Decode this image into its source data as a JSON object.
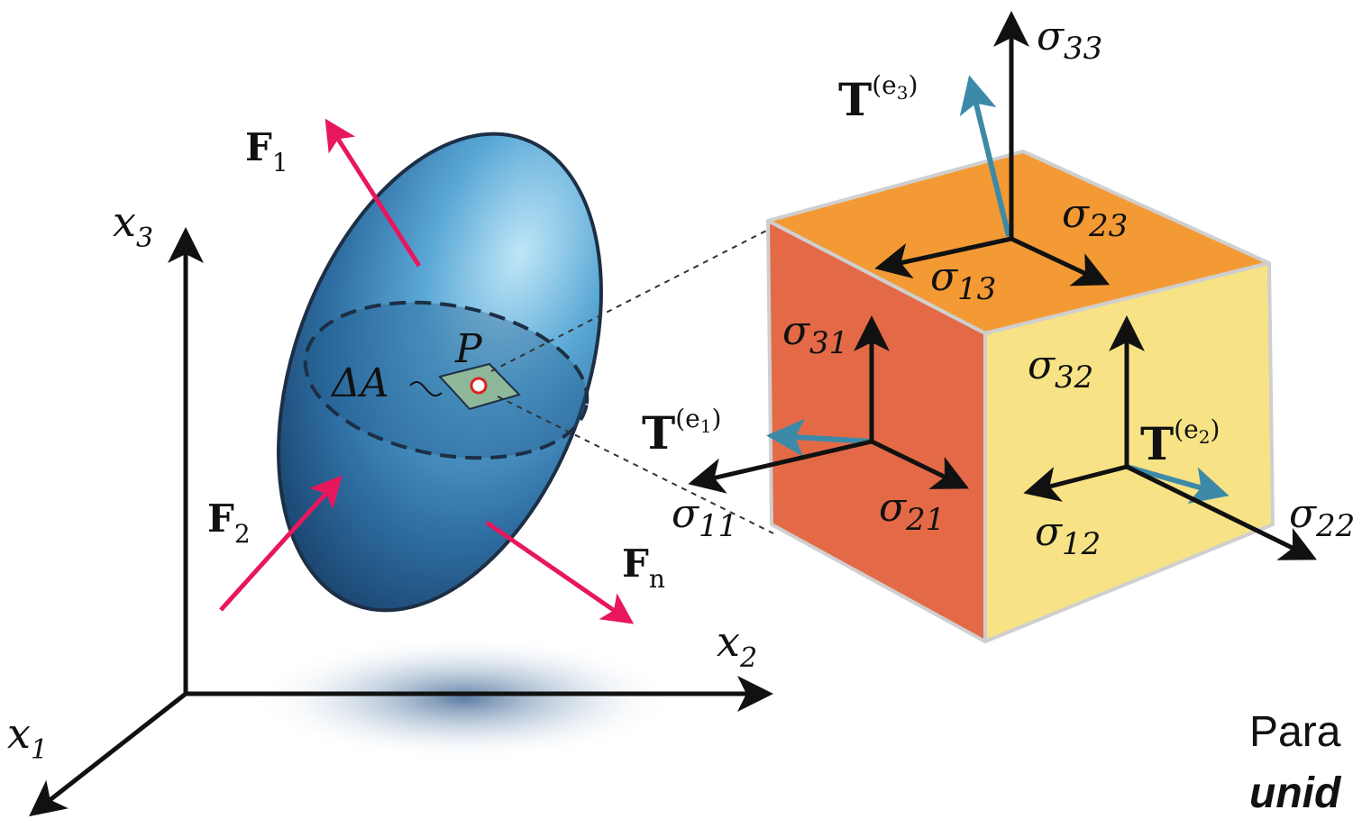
{
  "axes": {
    "x1": {
      "sym": "x",
      "sub": "1"
    },
    "x2": {
      "sym": "x",
      "sub": "2"
    },
    "x3": {
      "sym": "x",
      "sub": "3"
    }
  },
  "forces": {
    "f1": {
      "sym": "F",
      "sub": "1"
    },
    "f2": {
      "sym": "F",
      "sub": "2"
    },
    "fn": {
      "sym": "F",
      "sub": "n"
    }
  },
  "body_labels": {
    "area": "ΔA",
    "point": "P"
  },
  "tractions": {
    "t1": {
      "sym": "T",
      "sup": "(e",
      "subsup": "1",
      "close": ")"
    },
    "t2": {
      "sym": "T",
      "sup": "(e",
      "subsup": "2",
      "close": ")"
    },
    "t3": {
      "sym": "T",
      "sup": "(e",
      "subsup": "3",
      "close": ")"
    }
  },
  "stresses": {
    "s11": {
      "sym": "σ",
      "sub": "11"
    },
    "s12": {
      "sym": "σ",
      "sub": "12"
    },
    "s13": {
      "sym": "σ",
      "sub": "13"
    },
    "s21": {
      "sym": "σ",
      "sub": "21"
    },
    "s22": {
      "sym": "σ",
      "sub": "22"
    },
    "s23": {
      "sym": "σ",
      "sub": "23"
    },
    "s31": {
      "sym": "σ",
      "sub": "31"
    },
    "s32": {
      "sym": "σ",
      "sub": "32"
    },
    "s33": {
      "sym": "σ",
      "sub": "33"
    }
  },
  "note": {
    "line1": "Para",
    "line2": "unid"
  },
  "colors": {
    "force": "#e8175d",
    "traction": "#3d8aa8",
    "face_front": "#e46a47",
    "face_right": "#f7e386",
    "face_top": "#f39a35",
    "ellipsoid_light": "#a9dbf1",
    "ellipsoid_dark": "#1e4a78"
  }
}
